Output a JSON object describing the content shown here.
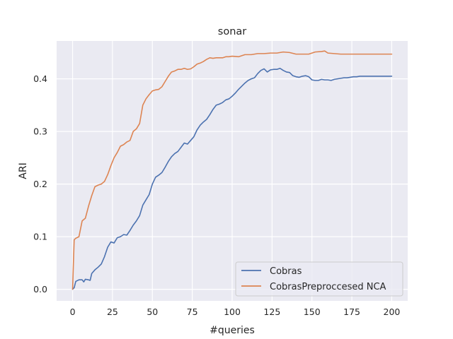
{
  "chart_data": {
    "type": "line",
    "title": "sonar",
    "xlabel": "#queries",
    "ylabel": "ARI",
    "xlim": [
      -10,
      210
    ],
    "ylim": [
      -0.022,
      0.472
    ],
    "xticks": [
      0,
      25,
      50,
      75,
      100,
      125,
      150,
      175,
      200
    ],
    "xtick_labels": [
      "0",
      "25",
      "50",
      "75",
      "100",
      "125",
      "150",
      "175",
      "200"
    ],
    "yticks": [
      0.0,
      0.1,
      0.2,
      0.3,
      0.4
    ],
    "ytick_labels": [
      "0.0",
      "0.1",
      "0.2",
      "0.3",
      "0.4"
    ],
    "grid": true,
    "legend_position": "bottom-right",
    "series": [
      {
        "name": "Cobras",
        "color": "#4c72b0",
        "x": [
          0,
          1,
          2,
          4,
          6,
          7,
          8,
          10,
          11,
          12,
          14,
          16,
          18,
          20,
          22,
          24,
          26,
          28,
          30,
          32,
          34,
          36,
          38,
          40,
          42,
          44,
          46,
          48,
          50,
          52,
          54,
          56,
          58,
          60,
          62,
          64,
          66,
          68,
          70,
          72,
          74,
          76,
          78,
          80,
          82,
          84,
          86,
          88,
          90,
          92,
          94,
          96,
          98,
          100,
          102,
          104,
          106,
          108,
          110,
          112,
          114,
          116,
          118,
          120,
          122,
          124,
          126,
          128,
          130,
          132,
          134,
          136,
          138,
          140,
          142,
          144,
          146,
          148,
          150,
          152,
          154,
          156,
          158,
          160,
          162,
          164,
          166,
          168,
          170,
          172,
          174,
          176,
          178,
          180,
          182,
          184,
          186,
          188,
          190,
          192,
          194,
          196,
          198,
          200
        ],
        "values": [
          0.0,
          0.003,
          0.015,
          0.018,
          0.018,
          0.014,
          0.019,
          0.018,
          0.017,
          0.03,
          0.037,
          0.042,
          0.048,
          0.062,
          0.08,
          0.09,
          0.088,
          0.098,
          0.1,
          0.104,
          0.103,
          0.112,
          0.122,
          0.13,
          0.14,
          0.16,
          0.17,
          0.18,
          0.2,
          0.213,
          0.217,
          0.222,
          0.232,
          0.243,
          0.252,
          0.258,
          0.262,
          0.27,
          0.278,
          0.276,
          0.283,
          0.29,
          0.303,
          0.312,
          0.318,
          0.323,
          0.332,
          0.342,
          0.35,
          0.352,
          0.355,
          0.36,
          0.362,
          0.367,
          0.373,
          0.38,
          0.386,
          0.392,
          0.397,
          0.4,
          0.402,
          0.41,
          0.416,
          0.419,
          0.413,
          0.417,
          0.418,
          0.418,
          0.42,
          0.416,
          0.413,
          0.412,
          0.406,
          0.404,
          0.403,
          0.405,
          0.406,
          0.404,
          0.398,
          0.397,
          0.397,
          0.399,
          0.398,
          0.398,
          0.397,
          0.399,
          0.4,
          0.401,
          0.402,
          0.402,
          0.403,
          0.404,
          0.404,
          0.405,
          0.405,
          0.405,
          0.405,
          0.405,
          0.405,
          0.405,
          0.405,
          0.405,
          0.405,
          0.405
        ]
      },
      {
        "name": "CobrasPreproccesed NCA",
        "color": "#dd8452",
        "x": [
          0,
          1,
          2,
          4,
          6,
          8,
          10,
          12,
          14,
          16,
          18,
          20,
          22,
          24,
          26,
          28,
          30,
          32,
          34,
          36,
          38,
          40,
          42,
          44,
          46,
          48,
          50,
          52,
          54,
          56,
          58,
          60,
          62,
          64,
          66,
          68,
          70,
          72,
          74,
          76,
          78,
          80,
          82,
          84,
          86,
          88,
          90,
          92,
          94,
          96,
          98,
          100,
          104,
          108,
          112,
          116,
          120,
          124,
          128,
          132,
          136,
          140,
          144,
          148,
          152,
          156,
          158,
          160,
          164,
          168,
          172,
          176,
          180,
          184,
          188,
          192,
          196,
          200
        ],
        "values": [
          0.0,
          0.094,
          0.097,
          0.1,
          0.13,
          0.135,
          0.158,
          0.178,
          0.195,
          0.198,
          0.2,
          0.205,
          0.218,
          0.235,
          0.25,
          0.26,
          0.272,
          0.275,
          0.28,
          0.283,
          0.3,
          0.305,
          0.315,
          0.35,
          0.362,
          0.37,
          0.377,
          0.379,
          0.38,
          0.385,
          0.395,
          0.405,
          0.413,
          0.415,
          0.418,
          0.418,
          0.42,
          0.418,
          0.419,
          0.423,
          0.428,
          0.43,
          0.433,
          0.437,
          0.44,
          0.439,
          0.44,
          0.44,
          0.44,
          0.442,
          0.442,
          0.443,
          0.442,
          0.446,
          0.446,
          0.448,
          0.448,
          0.449,
          0.449,
          0.451,
          0.45,
          0.447,
          0.447,
          0.447,
          0.451,
          0.452,
          0.453,
          0.449,
          0.448,
          0.447,
          0.447,
          0.447,
          0.447,
          0.447,
          0.447,
          0.447,
          0.447,
          0.447
        ]
      }
    ]
  }
}
